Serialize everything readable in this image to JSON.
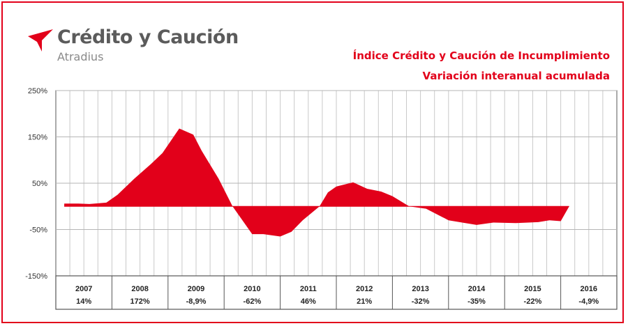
{
  "brand": {
    "name": "Crédito y Caución",
    "subname": "Atradius",
    "accent_color": "#e2001a"
  },
  "chart_data": {
    "type": "area",
    "title": "Índice Crédito y Caución de Incumplimiento",
    "subtitle": "Variación interanual acumulada",
    "y_ticks": [
      "250%",
      "150%",
      "50%",
      "-50%",
      "-150%"
    ],
    "ylim": [
      -150,
      250
    ],
    "x_range": [
      2007,
      2017
    ],
    "categories": [
      "2007",
      "2008",
      "2009",
      "2010",
      "2011",
      "2012",
      "2013",
      "2014",
      "2015",
      "2016"
    ],
    "annual_values": [
      "14%",
      "172%",
      "-8,9%",
      "-62%",
      "46%",
      "21%",
      "-32%",
      "-35%",
      "-22%",
      "-4,9%"
    ],
    "series": [
      {
        "name": "Variación interanual acumulada",
        "color": "#e2001a",
        "x": [
          2007.15,
          2007.4,
          2007.6,
          2007.9,
          2008.1,
          2008.4,
          2008.7,
          2008.9,
          2009.2,
          2009.45,
          2009.6,
          2009.9,
          2010.15,
          2010.5,
          2010.7,
          2011.0,
          2011.2,
          2011.4,
          2011.7,
          2011.85,
          2012.0,
          2012.3,
          2012.55,
          2012.8,
          2013.0,
          2013.3,
          2013.6,
          2014.0,
          2014.3,
          2014.5,
          2014.8,
          2015.2,
          2015.6,
          2015.8,
          2016.0,
          2016.15
        ],
        "y": [
          6,
          6,
          5,
          8,
          25,
          60,
          92,
          115,
          168,
          155,
          120,
          60,
          0,
          -60,
          -60,
          -65,
          -55,
          -30,
          0,
          30,
          43,
          52,
          38,
          32,
          22,
          0,
          -5,
          -30,
          -36,
          -40,
          -35,
          -36,
          -34,
          -30,
          -32,
          0
        ]
      }
    ]
  }
}
